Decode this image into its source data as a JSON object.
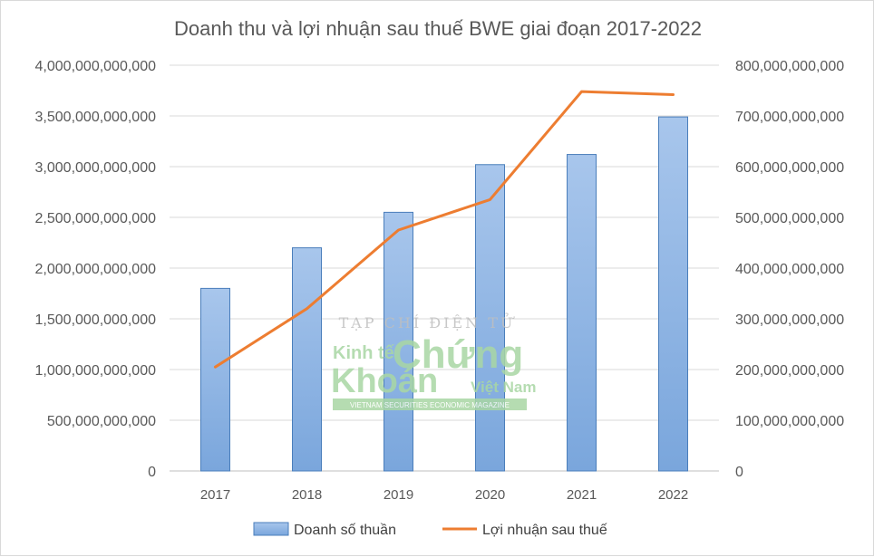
{
  "chart_data": {
    "type": "bar",
    "title": "Doanh thu và lợi nhuận sau thuế BWE giai đoạn 2017-2022",
    "categories": [
      "2017",
      "2018",
      "2019",
      "2020",
      "2021",
      "2022"
    ],
    "series": [
      {
        "name": "Doanh số thuần",
        "type": "bar",
        "axis": "left",
        "color": "#8fb4e3",
        "values": [
          1800000000000,
          2200000000000,
          2550000000000,
          3020000000000,
          3120000000000,
          3490000000000
        ]
      },
      {
        "name": "Lợi nhuận sau thuế",
        "type": "line",
        "axis": "right",
        "color": "#ed7d31",
        "values": [
          205000000000,
          320000000000,
          475000000000,
          535000000000,
          748000000000,
          742000000000
        ]
      }
    ],
    "y_left": {
      "lim": [
        0,
        4000000000000
      ],
      "ticks": [
        "0",
        "500,000,000,000",
        "1,000,000,000,000",
        "1,500,000,000,000",
        "2,000,000,000,000",
        "2,500,000,000,000",
        "3,000,000,000,000",
        "3,500,000,000,000",
        "4,000,000,000,000"
      ]
    },
    "y_right": {
      "lim": [
        0,
        800000000000
      ],
      "ticks": [
        "0",
        "100,000,000,000",
        "200,000,000,000",
        "300,000,000,000",
        "400,000,000,000",
        "500,000,000,000",
        "600,000,000,000",
        "700,000,000,000",
        "800,000,000,000"
      ]
    },
    "grid": true,
    "legend": "bottom"
  },
  "watermark": {
    "line1": "TẠP CHÍ ĐIỆN TỬ",
    "kinh_te": "Kinh tế",
    "chung": "Chứng",
    "khoan": "Khoán",
    "viet_nam": "Việt Nam",
    "tagline": "VIETNAM SECURITIES ECONOMIC MAGAZINE"
  }
}
